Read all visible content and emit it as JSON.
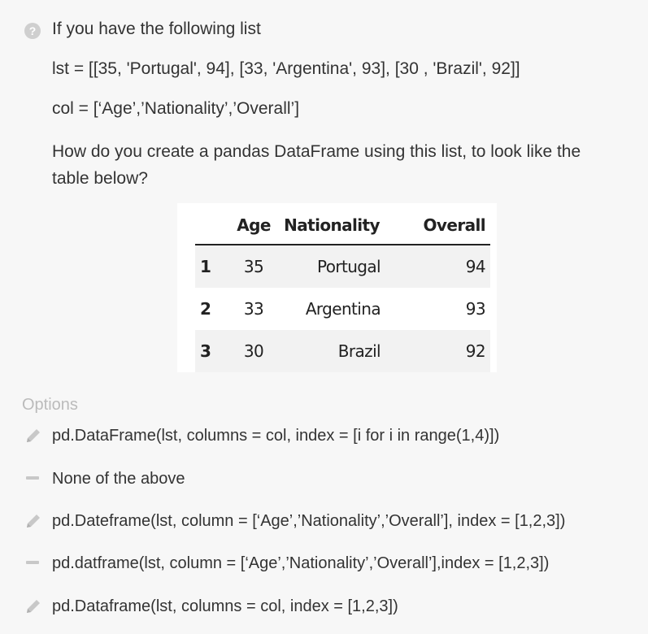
{
  "question": {
    "icon": "question-circle-icon",
    "intro": "If you have the following list",
    "list_line": "lst = [[35, 'Portugal', 94], [33, 'Argentina', 93], [30 , 'Brazil', 92]]",
    "col_line": "col = [‘Age’,’Nationality’,’Overall’]",
    "prompt": "How do you create a pandas DataFrame using this list, to look like the table below?"
  },
  "table": {
    "headers": [
      "",
      "Age",
      "Nationality",
      "Overall"
    ],
    "rows": [
      [
        "1",
        "35",
        "Portugal",
        "94"
      ],
      [
        "2",
        "33",
        "Argentina",
        "93"
      ],
      [
        "3",
        "30",
        "Brazil",
        "92"
      ]
    ]
  },
  "options": {
    "label": "Options",
    "items": [
      {
        "icon": "pencil-icon",
        "text": "pd.DataFrame(lst, columns = col, index = [i for i in range(1,4)])"
      },
      {
        "icon": "dash-icon",
        "text": "None of the above"
      },
      {
        "icon": "pencil-icon",
        "text": "pd.Dateframe(lst, column = [‘Age’,’Nationality’,’Overall’], index = [1,2,3])"
      },
      {
        "icon": "dash-icon",
        "text": "pd.datframe(lst, column = [‘Age’,’Nationality’,’Overall’],index = [1,2,3])"
      },
      {
        "icon": "pencil-icon",
        "text": "pd.Dataframe(lst, columns = col, index = [1,2,3])"
      }
    ]
  },
  "colors": {
    "background": "#f7f7f7",
    "text": "#333333",
    "muted": "#bbbbbb",
    "icon": "#c8c8c8"
  }
}
